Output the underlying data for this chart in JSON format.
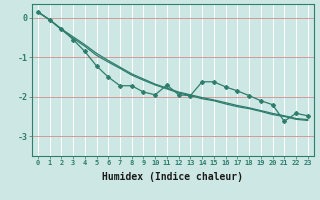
{
  "xlabel": "Humidex (Indice chaleur)",
  "bg_color": "#cde8e4",
  "grid_color": "#ffffff",
  "red_line_color": "#cc8888",
  "line_color": "#2e7d6d",
  "xmin": -0.5,
  "xmax": 23.5,
  "ymin": -3.5,
  "ymax": 0.35,
  "yticks": [
    0,
    -1,
    -2,
    -3
  ],
  "xticks": [
    0,
    1,
    2,
    3,
    4,
    5,
    6,
    7,
    8,
    9,
    10,
    11,
    12,
    13,
    14,
    15,
    16,
    17,
    18,
    19,
    20,
    21,
    22,
    23
  ],
  "line1_y": [
    0.15,
    -0.05,
    -0.28,
    -0.48,
    -0.68,
    -0.9,
    -1.08,
    -1.25,
    -1.42,
    -1.55,
    -1.68,
    -1.78,
    -1.88,
    -1.95,
    -2.02,
    -2.08,
    -2.15,
    -2.22,
    -2.28,
    -2.35,
    -2.42,
    -2.48,
    -2.55,
    -2.58
  ],
  "line2_y": [
    0.15,
    -0.05,
    -0.28,
    -0.55,
    -0.85,
    -1.22,
    -1.5,
    -1.72,
    -1.72,
    -1.88,
    -1.95,
    -1.7,
    -1.95,
    -1.97,
    -1.62,
    -1.62,
    -1.75,
    -1.85,
    -1.97,
    -2.1,
    -2.2,
    -2.62,
    -2.42,
    -2.48
  ],
  "line3_y": [
    0.15,
    -0.05,
    -0.3,
    -0.52,
    -0.72,
    -0.95,
    -1.12,
    -1.28,
    -1.45,
    -1.58,
    -1.7,
    -1.8,
    -1.9,
    -1.97,
    -2.05,
    -2.1,
    -2.18,
    -2.25,
    -2.3,
    -2.37,
    -2.45,
    -2.5,
    -2.57,
    -2.6
  ],
  "xlabel_fontsize": 7,
  "xtick_fontsize": 5,
  "ytick_fontsize": 6
}
